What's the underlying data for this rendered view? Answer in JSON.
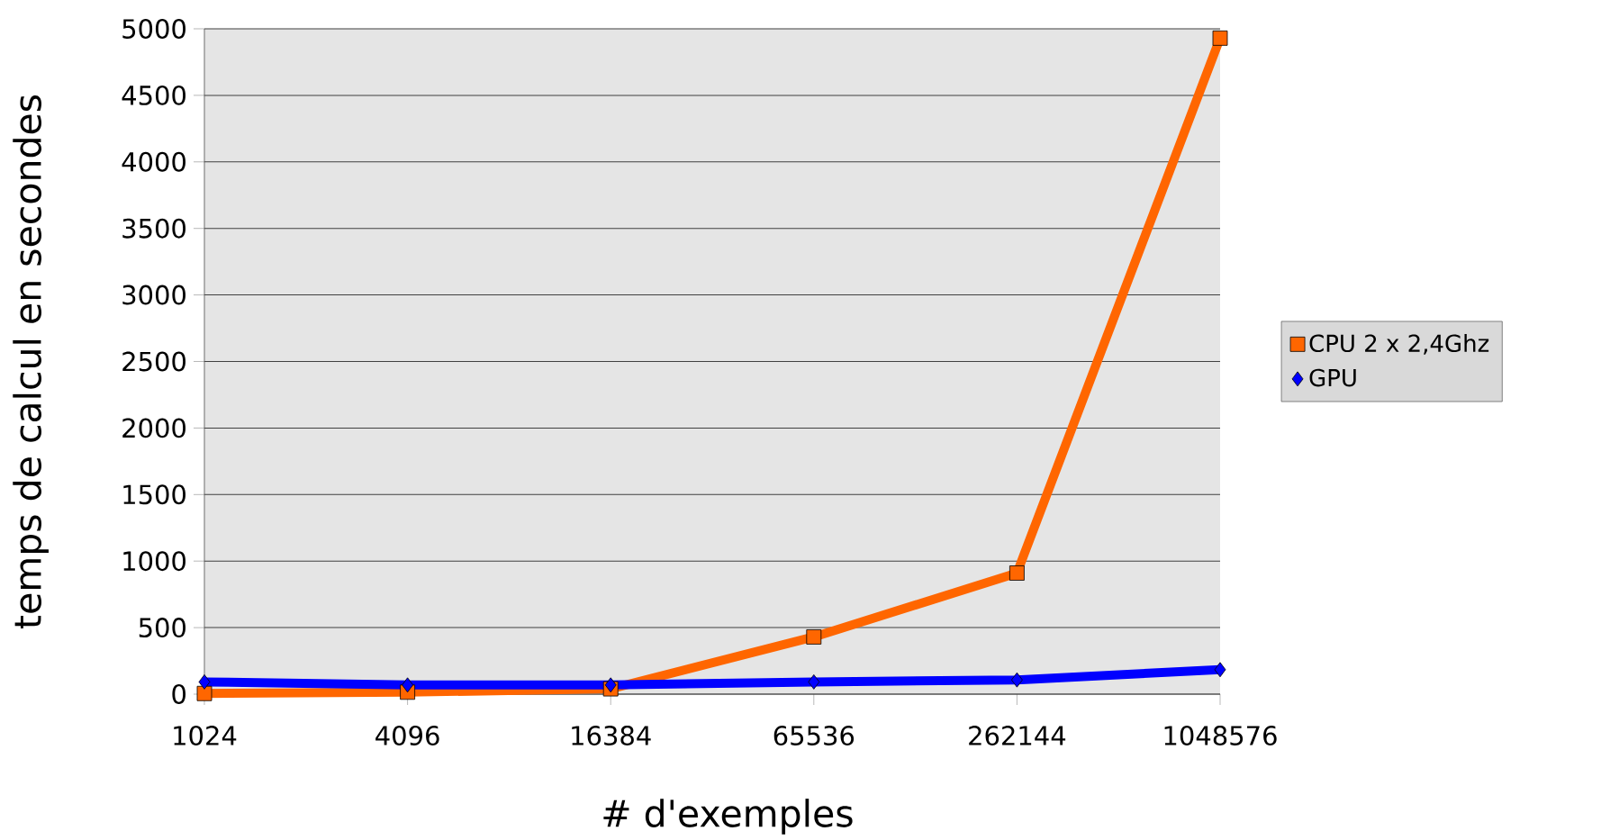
{
  "chart_data": {
    "type": "line",
    "categories": [
      "1024",
      "4096",
      "16384",
      "65536",
      "262144",
      "1048576"
    ],
    "xlabel": "# d'exemples",
    "ylabel": "temps de calcul en secondes",
    "series": [
      {
        "name": "CPU 2 x 2,4Ghz",
        "color": "#ff6600",
        "marker": "square",
        "values": [
          5,
          15,
          40,
          430,
          910,
          4930
        ]
      },
      {
        "name": "GPU",
        "color": "#0000ff",
        "marker": "diamond",
        "values": [
          92,
          69,
          69,
          92,
          107,
          184
        ]
      }
    ],
    "ylim": [
      0,
      5000
    ],
    "yticks": [
      0,
      500,
      1000,
      1500,
      2000,
      2500,
      3000,
      3500,
      4000,
      4500,
      5000
    ],
    "grid": "y",
    "legend": "right",
    "line_style": "solid"
  }
}
